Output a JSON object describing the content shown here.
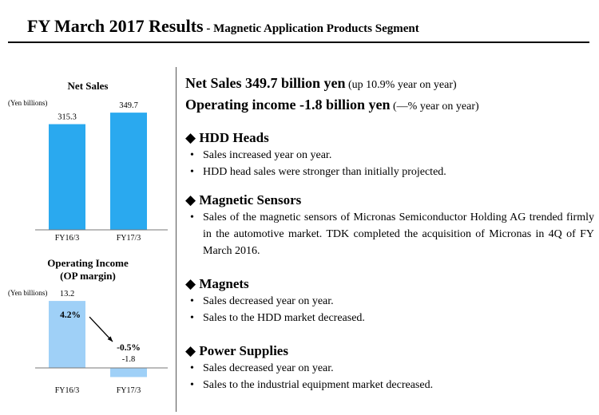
{
  "title": {
    "main": "FY March 2017 Results",
    "sub": " - Magnetic Application Products Segment"
  },
  "chart_data": [
    {
      "type": "bar",
      "title": "Net Sales",
      "ylabel": "(Yen billions)",
      "categories": [
        "FY16/3",
        "FY17/3"
      ],
      "values": [
        315.3,
        349.7
      ],
      "value_labels": [
        "315.3",
        "349.7"
      ],
      "ylim": [
        0,
        400
      ],
      "bar_colors": [
        "#2aa9ef",
        "#2aa9ef"
      ],
      "grid": false,
      "legend": "none"
    },
    {
      "type": "bar",
      "title": "Operating Income\n(OP margin)",
      "title_lines": [
        "Operating Income",
        "(OP margin)"
      ],
      "ylabel": "(Yen billions)",
      "categories": [
        "FY16/3",
        "FY17/3"
      ],
      "values": [
        13.2,
        -1.8
      ],
      "value_labels": [
        "13.2",
        "-1.8"
      ],
      "margins": [
        "4.2%",
        "-0.5%"
      ],
      "ylim": [
        -2,
        14
      ],
      "bar_colors": [
        "#9fd0f7",
        "#9fd0f7"
      ],
      "grid": false,
      "legend": "none"
    }
  ],
  "summary": {
    "net_sales": {
      "text": "Net Sales 349.7 billion yen",
      "note": " (up 10.9% year on year)"
    },
    "op_income": {
      "text": "Operating income -1.8 billion yen",
      "note": " (—% year on year)"
    }
  },
  "sections": [
    {
      "title": "HDD Heads",
      "marker": "◆",
      "bullet": "•",
      "items": [
        "Sales increased year on year.",
        "HDD head sales were stronger than initially projected."
      ]
    },
    {
      "title": "Magnetic Sensors",
      "marker": "◆",
      "bullet": "•",
      "items": [
        "Sales of the magnetic sensors of Micronas Semiconductor Holding AG trended firmly in the automotive market. TDK completed the acquisition of Micronas in 4Q of FY March 2016."
      ]
    },
    {
      "title": "Magnets",
      "marker": "◆",
      "bullet": "•",
      "items": [
        "Sales decreased year on year.",
        "Sales to the HDD market decreased."
      ]
    },
    {
      "title": "Power Supplies",
      "marker": "◆",
      "bullet": "•",
      "items": [
        "Sales decreased year on year.",
        "Sales to the industrial equipment market decreased."
      ]
    }
  ]
}
